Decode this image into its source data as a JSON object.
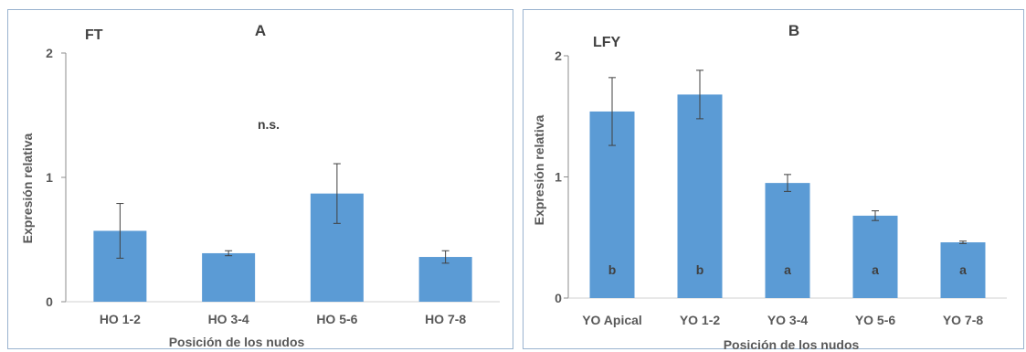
{
  "chart_data": [
    {
      "type": "bar",
      "panel_label": "A",
      "gene": "FT",
      "xlabel": "Posición de los nudos",
      "ylabel": "Expresión relativa",
      "categories": [
        "HO 1-2",
        "HO 3-4",
        "HO 5-6",
        "HO 7-8"
      ],
      "values": [
        0.57,
        0.39,
        0.87,
        0.36
      ],
      "errors": [
        0.22,
        0.02,
        0.24,
        0.05
      ],
      "ylim": [
        0,
        2
      ],
      "yticks": [
        "0",
        "1",
        "2"
      ],
      "annotation": "n.s.",
      "bar_labels": [
        "",
        "",
        "",
        ""
      ],
      "bar_color": "#5b9bd5",
      "grid": false
    },
    {
      "type": "bar",
      "panel_label": "B",
      "gene": "LFY",
      "xlabel": "Posición de los nudos",
      "ylabel": "Expresión relativa",
      "categories": [
        "YO Apical",
        "YO 1-2",
        "YO 3-4",
        "YO 5-6",
        "YO 7-8"
      ],
      "values": [
        1.54,
        1.68,
        0.95,
        0.68,
        0.46
      ],
      "errors": [
        0.28,
        0.2,
        0.07,
        0.04,
        0.01
      ],
      "ylim": [
        0,
        2
      ],
      "yticks": [
        "0",
        "1",
        "2"
      ],
      "annotation": "",
      "bar_labels": [
        "b",
        "b",
        "a",
        "a",
        "a"
      ],
      "bar_color": "#5b9bd5",
      "grid": false
    }
  ]
}
